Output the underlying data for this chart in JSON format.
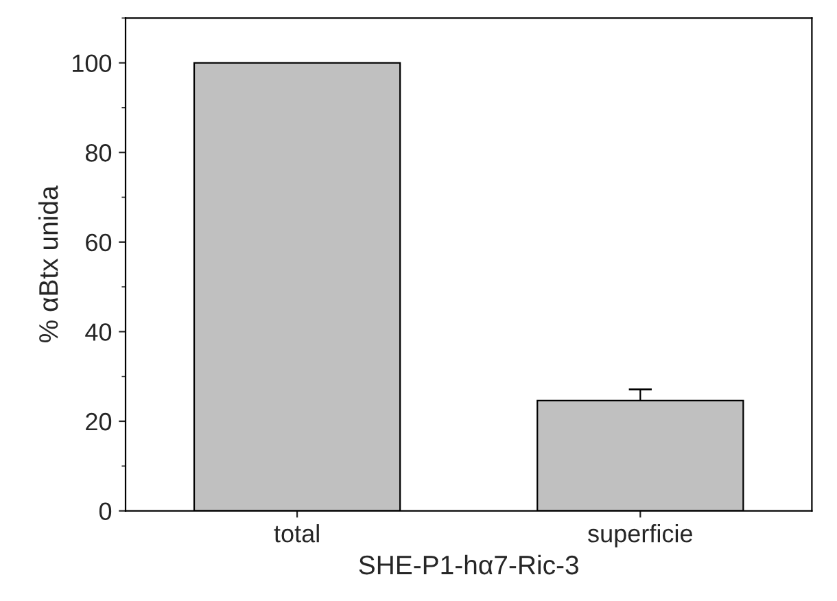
{
  "chart_data": {
    "type": "bar",
    "xlabel": "SHE-P1-hα7-Ric-3",
    "ylabel": "% αBtx unida",
    "categories": [
      "total",
      "superficie"
    ],
    "series": [
      {
        "color": "#c0c0c0",
        "values": [
          100,
          24.6
        ],
        "errors": [
          null,
          2.5
        ]
      }
    ],
    "ylim": [
      0,
      110
    ],
    "yticks": [
      0,
      20,
      40,
      60,
      80,
      100
    ],
    "grid": false,
    "legend": false
  }
}
